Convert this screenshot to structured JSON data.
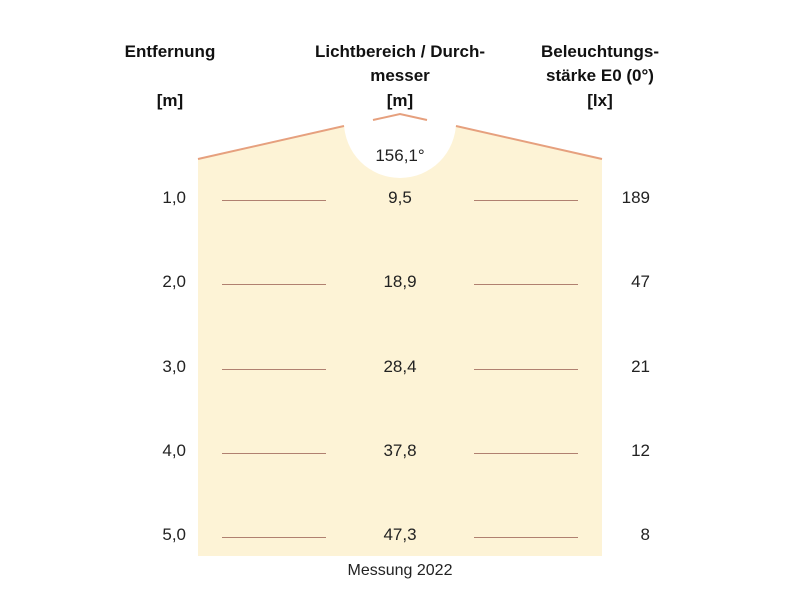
{
  "headers": {
    "distance": "Entfernung",
    "distance_unit": "[m]",
    "diameter_line1": "Lichtbereich / Durch-",
    "diameter_line2": "messer",
    "diameter_unit": "[m]",
    "lux_line1": "Beleuchtungs-",
    "lux_line2": "stärke E0 (0°)",
    "lux_unit": "[lx]"
  },
  "beam_angle": "156,1°",
  "rows": [
    {
      "distance": "1,0",
      "diameter": "9,5",
      "lux": "189"
    },
    {
      "distance": "2,0",
      "diameter": "18,9",
      "lux": "47"
    },
    {
      "distance": "3,0",
      "diameter": "28,4",
      "lux": "21"
    },
    {
      "distance": "4,0",
      "diameter": "37,8",
      "lux": "12"
    },
    {
      "distance": "5,0",
      "diameter": "47,3",
      "lux": "8"
    }
  ],
  "caption": "Messung 2022",
  "colors": {
    "cone_fill": "#fdf3d6",
    "cone_edge": "#e6a07e",
    "row_line": "#b08070"
  }
}
